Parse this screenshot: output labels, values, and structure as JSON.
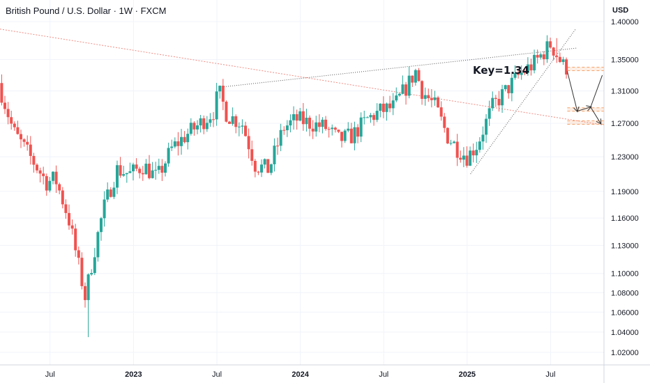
{
  "header": {
    "title": "British Pound / U.S. Dollar · 1W · FXCM",
    "currency": "USD"
  },
  "annotation": {
    "key_label": "Key=1.34"
  },
  "colors": {
    "up": "#26a69a",
    "down": "#ef5350",
    "trend_red": "#f28b82",
    "trend_dotted": "#555555",
    "zone": "#f6a36b"
  },
  "chart_data": {
    "type": "candlestick",
    "title": "British Pound / U.S. Dollar · 1W · FXCM",
    "ylabel": "USD",
    "y_scale": "log",
    "ylim": [
      1.0,
      1.4
    ],
    "yticks": [
      1.02,
      1.04,
      1.06,
      1.08,
      1.1,
      1.13,
      1.16,
      1.19,
      1.23,
      1.27,
      1.31,
      1.35,
      1.4
    ],
    "ytick_labels": [
      "1.02000",
      "1.04000",
      "1.06000",
      "1.08000",
      "1.10000",
      "1.13000",
      "1.16000",
      "1.19000",
      "1.23000",
      "1.27000",
      "1.31000",
      "1.35000",
      "1.40000"
    ],
    "xlim": [
      2022.2,
      2025.82
    ],
    "xticks": [
      {
        "label": "Jul",
        "x": 2022.5,
        "bold": false
      },
      {
        "label": "2023",
        "x": 2023.0,
        "bold": true
      },
      {
        "label": "Jul",
        "x": 2023.5,
        "bold": false
      },
      {
        "label": "2024",
        "x": 2024.0,
        "bold": true
      },
      {
        "label": "Jul",
        "x": 2024.5,
        "bold": false
      },
      {
        "label": "2025",
        "x": 2025.0,
        "bold": true
      },
      {
        "label": "Jul",
        "x": 2025.5,
        "bold": false
      }
    ],
    "anchors": [
      [
        2022.21,
        1.32
      ],
      [
        2022.3,
        1.26
      ],
      [
        2022.4,
        1.23
      ],
      [
        2022.5,
        1.2
      ],
      [
        2022.55,
        1.205
      ],
      [
        2022.63,
        1.16
      ],
      [
        2022.7,
        1.1
      ],
      [
        2022.73,
        1.075
      ],
      [
        2022.78,
        1.12
      ],
      [
        2022.84,
        1.17
      ],
      [
        2022.92,
        1.215
      ],
      [
        2023.0,
        1.21
      ],
      [
        2023.08,
        1.22
      ],
      [
        2023.16,
        1.205
      ],
      [
        2023.25,
        1.24
      ],
      [
        2023.33,
        1.255
      ],
      [
        2023.42,
        1.27
      ],
      [
        2023.5,
        1.285
      ],
      [
        2023.53,
        1.31
      ],
      [
        2023.58,
        1.28
      ],
      [
        2023.67,
        1.27
      ],
      [
        2023.75,
        1.22
      ],
      [
        2023.83,
        1.215
      ],
      [
        2023.92,
        1.265
      ],
      [
        2024.0,
        1.275
      ],
      [
        2024.08,
        1.27
      ],
      [
        2024.17,
        1.265
      ],
      [
        2024.25,
        1.25
      ],
      [
        2024.33,
        1.255
      ],
      [
        2024.42,
        1.275
      ],
      [
        2024.5,
        1.285
      ],
      [
        2024.58,
        1.29
      ],
      [
        2024.67,
        1.32
      ],
      [
        2024.71,
        1.335
      ],
      [
        2024.75,
        1.31
      ],
      [
        2024.83,
        1.29
      ],
      [
        2024.9,
        1.255
      ],
      [
        2024.96,
        1.24
      ],
      [
        2025.02,
        1.23
      ],
      [
        2025.08,
        1.245
      ],
      [
        2025.17,
        1.29
      ],
      [
        2025.25,
        1.31
      ],
      [
        2025.33,
        1.33
      ],
      [
        2025.42,
        1.345
      ],
      [
        2025.48,
        1.36
      ],
      [
        2025.52,
        1.37
      ],
      [
        2025.56,
        1.355
      ],
      [
        2025.6,
        1.34
      ]
    ],
    "extreme_wicks": [
      {
        "x": 2022.73,
        "y": 1.035
      },
      {
        "x": 2025.53,
        "y": 1.378
      }
    ],
    "trendlines": [
      {
        "style": "red-dotted",
        "from": [
          2022.2,
          1.39
        ],
        "to": [
          2025.82,
          1.268
        ]
      },
      {
        "style": "dotted",
        "from": [
          2023.53,
          1.315
        ],
        "to": [
          2025.66,
          1.365
        ]
      },
      {
        "style": "dotted",
        "from": [
          2025.02,
          1.21
        ],
        "to": [
          2025.65,
          1.39
        ]
      }
    ],
    "zones": [
      1.338,
      1.287,
      1.271
    ],
    "projection": [
      [
        2025.6,
        1.335
      ],
      [
        2025.66,
        1.285
      ],
      [
        2025.74,
        1.29
      ],
      [
        2025.8,
        1.27
      ]
    ],
    "projection_up": [
      [
        2025.74,
        1.29
      ],
      [
        2025.81,
        1.33
      ]
    ]
  }
}
